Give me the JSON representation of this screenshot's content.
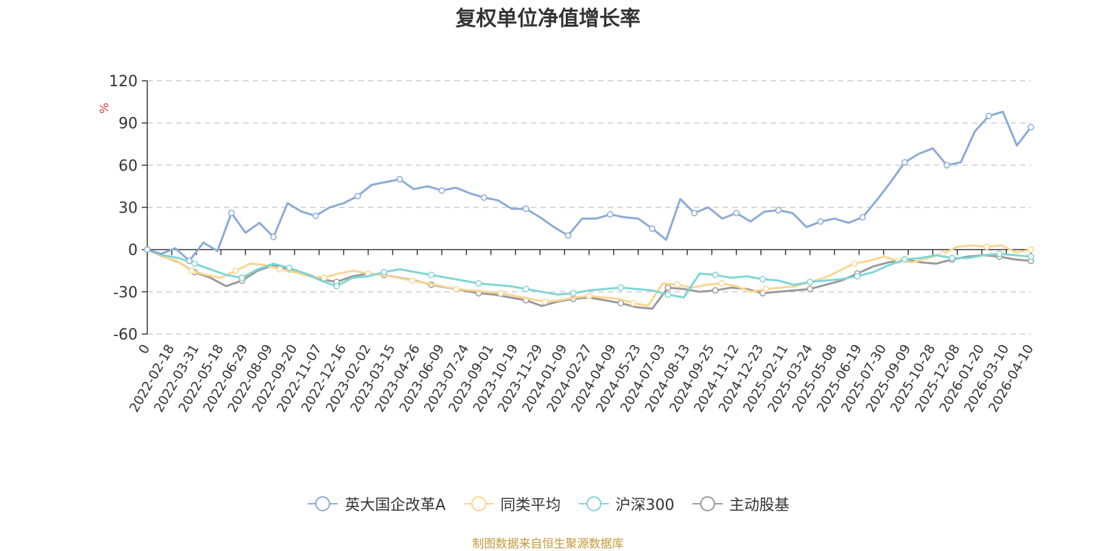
{
  "chart_data": {
    "type": "line",
    "title": "复权单位净值增长率",
    "ylabel": "%",
    "ylim": [
      -60,
      120
    ],
    "yticks": [
      "120",
      "90",
      "60",
      "30",
      "0",
      "-30",
      "-60"
    ],
    "x_tick_labels": [
      "0",
      "2022-02-18",
      "2022-03-31",
      "2022-05-18",
      "2022-06-29",
      "2022-08-09",
      "2022-09-20",
      "2022-11-07",
      "2022-12-16",
      "2023-02-02",
      "2023-03-15",
      "2023-04-26",
      "2023-06-09",
      "2023-07-24",
      "2023-09-01",
      "2023-10-19",
      "2023-11-29",
      "2024-01-09",
      "2024-02-27",
      "2024-04-09",
      "2024-05-23",
      "2024-07-03",
      "2024-08-13",
      "2024-09-25",
      "2024-11-12",
      "2024-12-23",
      "2025-02-11",
      "2025-03-24",
      "2025-05-08",
      "2025-06-19",
      "2025-07-30",
      "2025-09-09",
      "2025-10-28",
      "2025-12-08",
      "2026-01-20",
      "2026-03-10",
      "2026-04-10"
    ],
    "series": [
      {
        "name": "英大国企改革A",
        "color": "#8aaad8",
        "values": [
          0,
          -3,
          1,
          -8,
          5,
          -1,
          26,
          12,
          19,
          9,
          33,
          27,
          24,
          30,
          33,
          38,
          46,
          48,
          50,
          43,
          45,
          42,
          44,
          40,
          37,
          35,
          29,
          29,
          23,
          16,
          10,
          22,
          22,
          25,
          23,
          22,
          15,
          7,
          36,
          26,
          30,
          22,
          26,
          20,
          27,
          28,
          26,
          16,
          20,
          22,
          19,
          23,
          35,
          48,
          62,
          68,
          72,
          60,
          62,
          84,
          95,
          98,
          74,
          87
        ]
      },
      {
        "name": "同类平均",
        "color": "#f9d591",
        "values": [
          0,
          -5,
          -8,
          -15,
          -18,
          -20,
          -15,
          -10,
          -11,
          -14,
          -16,
          -19,
          -20,
          -17,
          -15,
          -17,
          -18,
          -20,
          -22,
          -24,
          -26,
          -28,
          -29,
          -30,
          -31,
          -33,
          -35,
          -37,
          -36,
          -34,
          -33,
          -34,
          -35,
          -38,
          -40,
          -24,
          -25,
          -27,
          -25,
          -24,
          -26,
          -30,
          -28,
          -27,
          -26,
          -23,
          -20,
          -15,
          -10,
          -8,
          -5,
          -8,
          -9,
          -6,
          -3,
          2,
          3,
          2,
          3,
          -2,
          0
        ]
      },
      {
        "name": "沪深300",
        "color": "#7fd5d5",
        "values": [
          0,
          -4,
          -6,
          -10,
          -14,
          -18,
          -20,
          -14,
          -10,
          -13,
          -17,
          -22,
          -26,
          -20,
          -19,
          -16,
          -14,
          -16,
          -18,
          -20,
          -22,
          -24,
          -25,
          -26,
          -28,
          -30,
          -32,
          -31,
          -29,
          -28,
          -27,
          -28,
          -29,
          -32,
          -34,
          -17,
          -18,
          -20,
          -19,
          -21,
          -22,
          -25,
          -23,
          -22,
          -21,
          -19,
          -16,
          -11,
          -7,
          -6,
          -4,
          -6,
          -6,
          -4,
          -3,
          -4,
          -5
        ]
      },
      {
        "name": "主动股基",
        "color": "#999999",
        "values": [
          0,
          -5,
          -9,
          -16,
          -20,
          -26,
          -22,
          -15,
          -11,
          -14,
          -17,
          -21,
          -23,
          -19,
          -17,
          -18,
          -20,
          -22,
          -25,
          -27,
          -29,
          -31,
          -32,
          -34,
          -36,
          -40,
          -37,
          -35,
          -34,
          -36,
          -38,
          -41,
          -42,
          -27,
          -28,
          -30,
          -29,
          -27,
          -28,
          -31,
          -30,
          -29,
          -28,
          -25,
          -22,
          -17,
          -12,
          -9,
          -7,
          -9,
          -10,
          -7,
          -5,
          -4,
          -5,
          -7,
          -8
        ]
      }
    ]
  },
  "legend": [
    "英大国企改革A",
    "同类平均",
    "沪深300",
    "主动股基"
  ],
  "source_note": "制图数据来自恒生聚源数据库"
}
